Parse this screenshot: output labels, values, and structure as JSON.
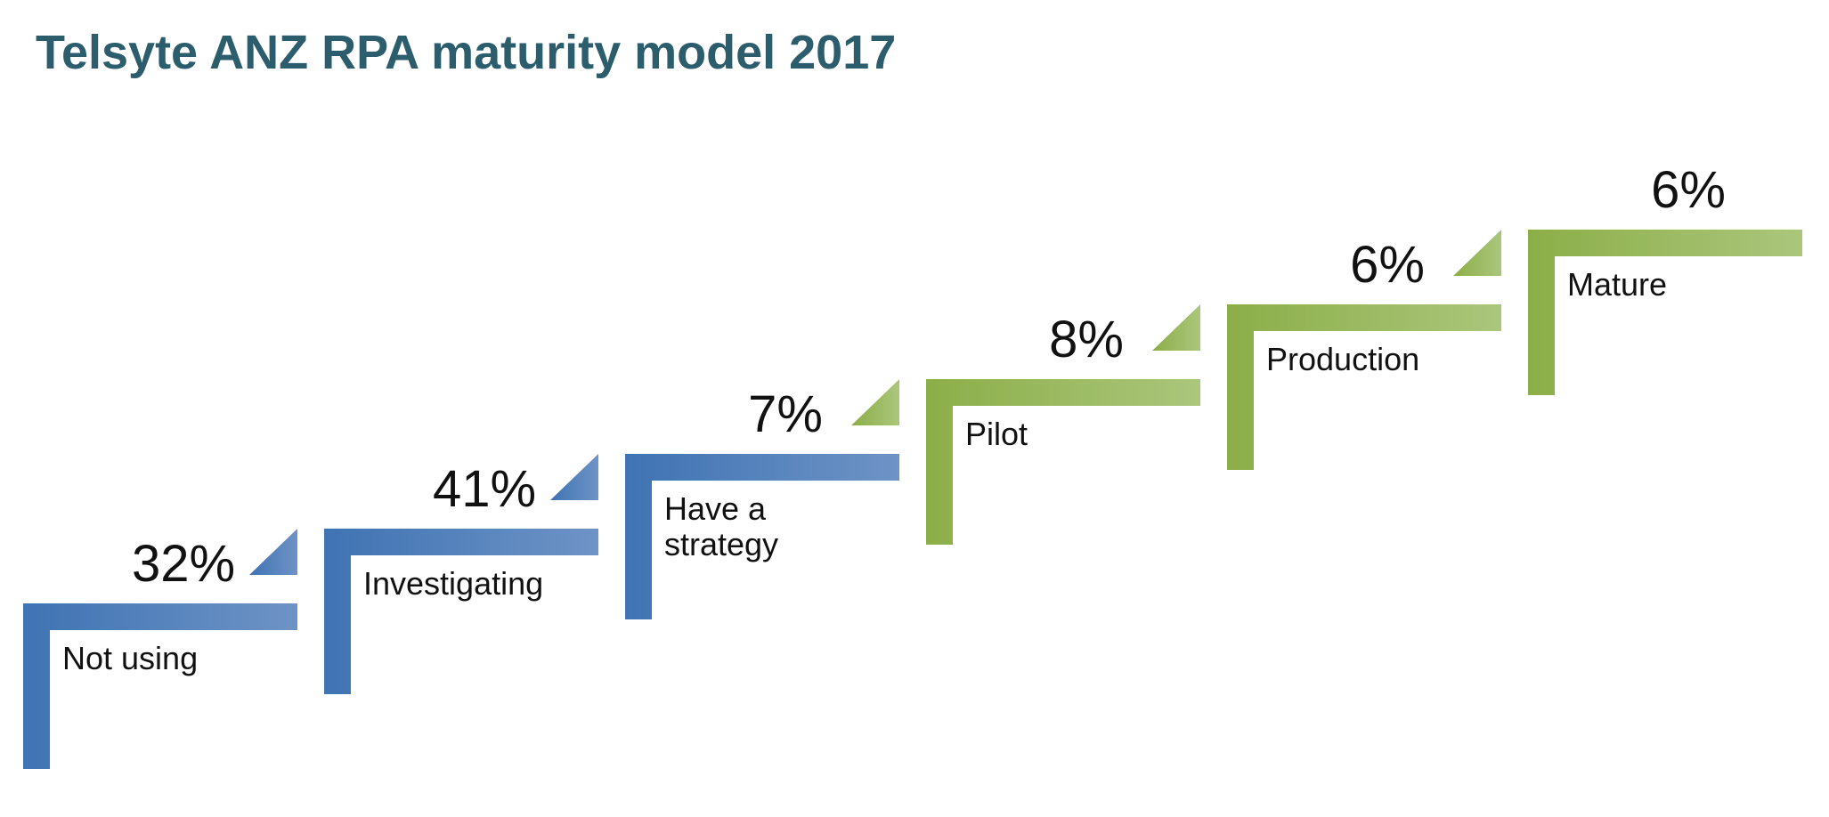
{
  "title": "Telsyte ANZ RPA maturity model 2017",
  "colors": {
    "blue": "#3f73b3",
    "blue_light": "#6e93c6",
    "green": "#8cae48",
    "green_light": "#aac67c"
  },
  "steps": [
    {
      "label": "Not using",
      "percent": "32%",
      "value": 32,
      "color": "blue"
    },
    {
      "label": "Investigating",
      "percent": "41%",
      "value": 41,
      "color": "blue"
    },
    {
      "label": "Have a\nstrategy",
      "percent": "7%",
      "value": 7,
      "color": "blue"
    },
    {
      "label": "Pilot",
      "percent": "8%",
      "value": 8,
      "color": "green"
    },
    {
      "label": "Production",
      "percent": "6%",
      "value": 6,
      "color": "green"
    },
    {
      "label": "Mature",
      "percent": "6%",
      "value": 6,
      "color": "green"
    }
  ]
}
